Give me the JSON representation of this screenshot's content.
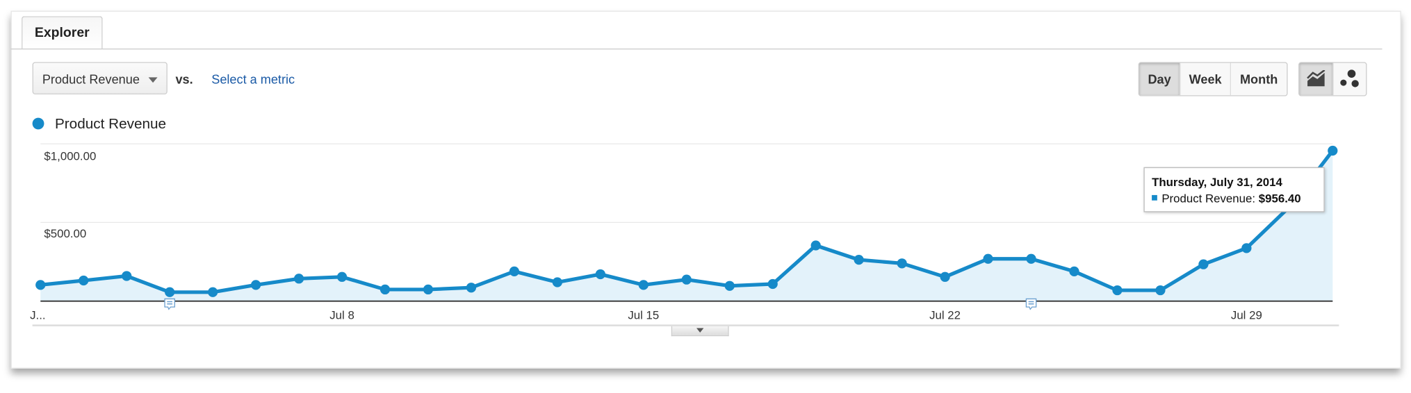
{
  "tab": {
    "label": "Explorer"
  },
  "controls": {
    "metric_dropdown": "Product Revenue",
    "vs_label": "vs.",
    "select_metric_link": "Select a metric",
    "period_buttons": [
      {
        "label": "Day",
        "selected": true
      },
      {
        "label": "Week",
        "selected": false
      },
      {
        "label": "Month",
        "selected": false
      }
    ],
    "chart_type_buttons": [
      {
        "icon": "line-chart-icon",
        "selected": true
      },
      {
        "icon": "motion-chart-icon",
        "selected": false
      }
    ]
  },
  "tooltip": {
    "date": "Thursday, July 31, 2014",
    "series": "Product Revenue:",
    "value": "$956.40"
  },
  "colors": {
    "series": "#168ac9",
    "fill": "#e3f2fa"
  },
  "chart_data": {
    "type": "area",
    "legend": [
      "Product Revenue"
    ],
    "legend_position": "top-left",
    "x": [
      1,
      2,
      3,
      4,
      5,
      6,
      7,
      8,
      9,
      10,
      11,
      12,
      13,
      14,
      15,
      16,
      17,
      18,
      19,
      20,
      21,
      22,
      23,
      24,
      25,
      26,
      27,
      28,
      29,
      30,
      31
    ],
    "series": [
      {
        "name": "Product Revenue",
        "values": [
          103,
          131,
          160,
          57,
          57,
          103,
          143,
          154,
          74,
          74,
          86,
          189,
          120,
          171,
          103,
          137,
          97,
          109,
          354,
          263,
          240,
          154,
          269,
          269,
          189,
          69,
          69,
          234,
          337,
          600,
          956.4
        ]
      }
    ],
    "y_ticks": [
      "$500.00",
      "$1,000.00"
    ],
    "y_tick_values": [
      500,
      1000
    ],
    "x_ticks": [
      "J...",
      "Jul 8",
      "Jul 15",
      "Jul 22",
      "Jul 29"
    ],
    "x_tick_days": [
      1,
      8,
      15,
      22,
      29
    ],
    "ylim": [
      0,
      1000
    ],
    "grid": true,
    "annotation_days": [
      4,
      24
    ]
  }
}
